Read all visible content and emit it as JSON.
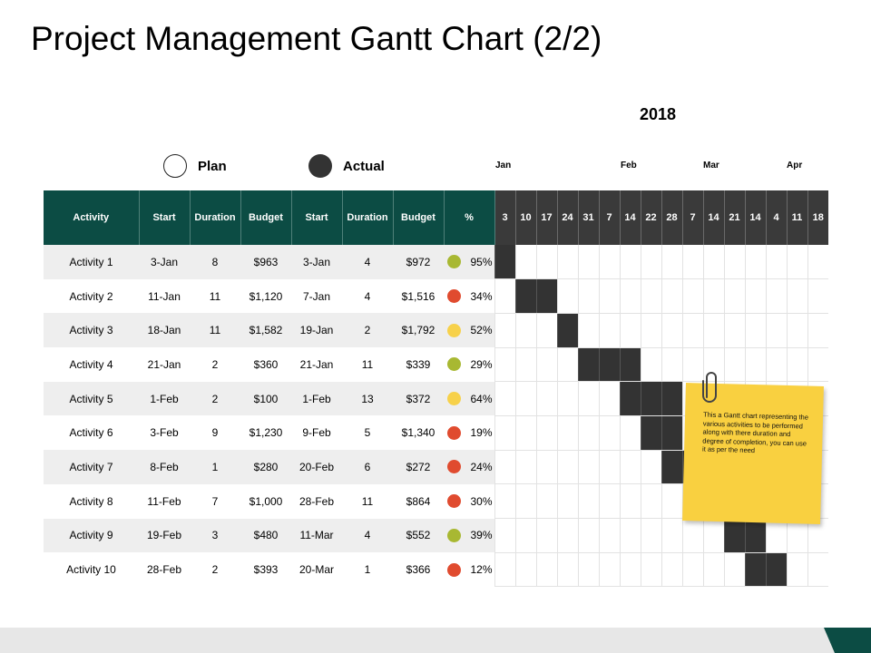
{
  "title": "Project Management Gantt Chart (2/2)",
  "year": "2018",
  "legend": {
    "plan_label": "Plan",
    "actual_label": "Actual"
  },
  "months": [
    "Jan",
    "Feb",
    "Mar",
    "Apr"
  ],
  "headers": [
    "Activity",
    "Start",
    "Duration",
    "Budget",
    "Start",
    "Duration",
    "Budget",
    "%"
  ],
  "weeks": [
    "3",
    "10",
    "17",
    "24",
    "31",
    "7",
    "14",
    "22",
    "28",
    "7",
    "14",
    "21",
    "14",
    "4",
    "11",
    "18"
  ],
  "colors": {
    "header_bg": "#0c4c44",
    "week_bg": "#3a3a3a",
    "bar": "#333333",
    "status_green": "#a8b832",
    "status_red": "#e04b2f",
    "status_yellow": "#f7d14a",
    "note": "#f9d040"
  },
  "rows": [
    {
      "activity": "Activity 1",
      "plan_start": "3-Jan",
      "plan_duration": "8",
      "plan_budget": "$963",
      "actual_start": "3-Jan",
      "actual_duration": "4",
      "actual_budget": "$972",
      "status": "green",
      "percent": "95%",
      "bars": [
        0
      ]
    },
    {
      "activity": "Activity 2",
      "plan_start": "11-Jan",
      "plan_duration": "11",
      "plan_budget": "$1,120",
      "actual_start": "7-Jan",
      "actual_duration": "4",
      "actual_budget": "$1,516",
      "status": "red",
      "percent": "34%",
      "bars": [
        1,
        2
      ]
    },
    {
      "activity": "Activity 3",
      "plan_start": "18-Jan",
      "plan_duration": "11",
      "plan_budget": "$1,582",
      "actual_start": "19-Jan",
      "actual_duration": "2",
      "actual_budget": "$1,792",
      "status": "yellow",
      "percent": "52%",
      "bars": [
        3
      ]
    },
    {
      "activity": "Activity 4",
      "plan_start": "21-Jan",
      "plan_duration": "2",
      "plan_budget": "$360",
      "actual_start": "21-Jan",
      "actual_duration": "11",
      "actual_budget": "$339",
      "status": "green",
      "percent": "29%",
      "bars": [
        4,
        5,
        6
      ]
    },
    {
      "activity": "Activity 5",
      "plan_start": "1-Feb",
      "plan_duration": "2",
      "plan_budget": "$100",
      "actual_start": "1-Feb",
      "actual_duration": "13",
      "actual_budget": "$372",
      "status": "yellow",
      "percent": "64%",
      "bars": [
        6,
        7,
        8
      ]
    },
    {
      "activity": "Activity 6",
      "plan_start": "3-Feb",
      "plan_duration": "9",
      "plan_budget": "$1,230",
      "actual_start": "9-Feb",
      "actual_duration": "5",
      "actual_budget": "$1,340",
      "status": "red",
      "percent": "19%",
      "bars": [
        7,
        8
      ]
    },
    {
      "activity": "Activity 7",
      "plan_start": "8-Feb",
      "plan_duration": "1",
      "plan_budget": "$280",
      "actual_start": "20-Feb",
      "actual_duration": "6",
      "actual_budget": "$272",
      "status": "red",
      "percent": "24%",
      "bars": [
        8,
        9
      ]
    },
    {
      "activity": "Activity 8",
      "plan_start": "11-Feb",
      "plan_duration": "7",
      "plan_budget": "$1,000",
      "actual_start": "28-Feb",
      "actual_duration": "11",
      "actual_budget": "$864",
      "status": "red",
      "percent": "30%",
      "bars": [
        10
      ]
    },
    {
      "activity": "Activity 9",
      "plan_start": "19-Feb",
      "plan_duration": "3",
      "plan_budget": "$480",
      "actual_start": "11-Mar",
      "actual_duration": "4",
      "actual_budget": "$552",
      "status": "green",
      "percent": "39%",
      "bars": [
        11,
        12
      ]
    },
    {
      "activity": "Activity 10",
      "plan_start": "28-Feb",
      "plan_duration": "2",
      "plan_budget": "$393",
      "actual_start": "20-Mar",
      "actual_duration": "1",
      "actual_budget": "$366",
      "status": "red",
      "percent": "12%",
      "bars": [
        12,
        13
      ]
    }
  ],
  "note": "This a Gantt chart representing the various activities to be performed along with there duration and degree of completion, you can use it as per the need",
  "icons": {
    "note_clip": "paperclip-icon",
    "plan_marker": "circle-outline-icon",
    "actual_marker": "circle-filled-icon"
  }
}
